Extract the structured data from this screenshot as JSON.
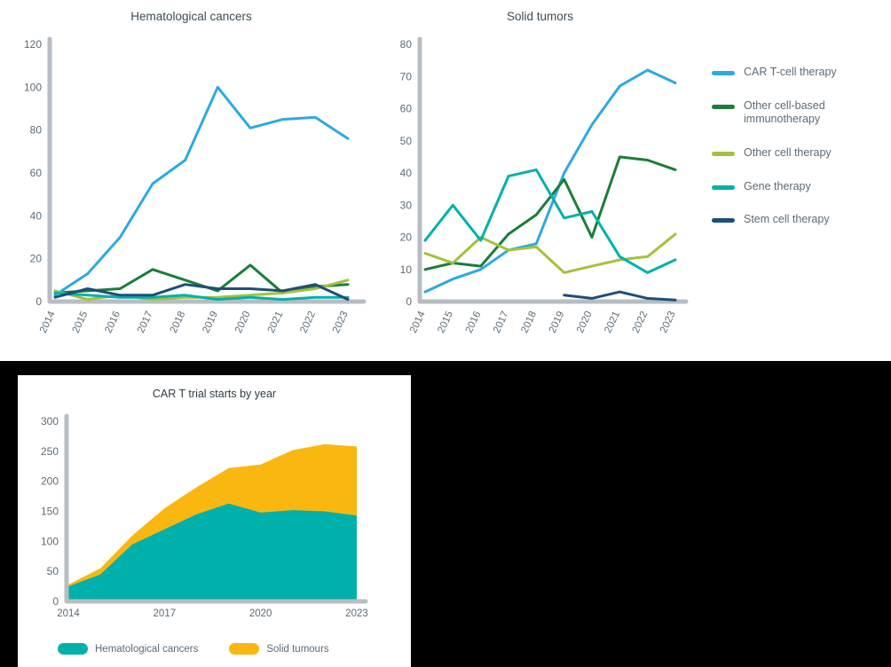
{
  "colors": {
    "car_t": "#2da9e1",
    "other_immuno": "#1b7d39",
    "other_cell": "#a4c13d",
    "gene": "#00b1ab",
    "stem": "#1e4e79",
    "hema_area": "#00b1ab",
    "solid_area": "#fab70f",
    "axis": "#b7bdc2",
    "tick_text": "#5d6b76",
    "title_text": "#3c4b55"
  },
  "chart_data": [
    {
      "id": "hematological",
      "type": "line",
      "title": "Hematological cancers",
      "categories": [
        "2014",
        "2015",
        "2016",
        "2017",
        "2018",
        "2019",
        "2020",
        "2021",
        "2022",
        "2023"
      ],
      "ylim": [
        0,
        120
      ],
      "ytick_step": 20,
      "grid": false,
      "series": [
        {
          "name": "CAR T-cell therapy",
          "color": "car_t",
          "values": [
            3,
            13,
            30,
            55,
            66,
            100,
            81,
            85,
            86,
            76
          ]
        },
        {
          "name": "Other cell-based immunotherapy",
          "color": "other_immuno",
          "values": [
            4,
            5,
            6,
            15,
            10,
            5,
            17,
            4,
            7,
            8
          ]
        },
        {
          "name": "Other cell therapy",
          "color": "other_cell",
          "values": [
            5,
            1,
            3,
            1,
            2,
            2,
            3,
            4,
            6,
            10
          ]
        },
        {
          "name": "Gene therapy",
          "color": "gene",
          "values": [
            4,
            3,
            2,
            2,
            3,
            1,
            2,
            1,
            2,
            2
          ]
        },
        {
          "name": "Stem cell therapy",
          "color": "stem",
          "values": [
            2,
            6,
            3,
            3,
            8,
            6,
            6,
            5,
            8,
            1
          ]
        }
      ]
    },
    {
      "id": "solid",
      "type": "line",
      "title": "Solid tumors",
      "categories": [
        "2014",
        "2015",
        "2016",
        "2017",
        "2018",
        "2019",
        "2020",
        "2021",
        "2022",
        "2023"
      ],
      "ylim": [
        0,
        80
      ],
      "ytick_step": 10,
      "grid": false,
      "series": [
        {
          "name": "CAR T-cell therapy",
          "color": "car_t",
          "values": [
            3,
            7,
            10,
            16,
            18,
            40,
            55,
            67,
            72,
            68
          ]
        },
        {
          "name": "Other cell-based immunotherapy",
          "color": "other_immuno",
          "values": [
            10,
            12,
            11,
            21,
            27,
            38,
            20,
            45,
            44,
            41
          ]
        },
        {
          "name": "Other cell therapy",
          "color": "other_cell",
          "values": [
            15,
            12,
            20,
            16,
            17,
            9,
            11,
            13,
            14,
            21
          ]
        },
        {
          "name": "Gene therapy",
          "color": "gene",
          "values": [
            19,
            30,
            19,
            39,
            41,
            26,
            28,
            14,
            9,
            13
          ]
        },
        {
          "name": "Stem cell therapy",
          "color": "stem",
          "values": [
            null,
            null,
            null,
            null,
            null,
            2,
            1,
            3,
            1,
            0.5
          ]
        }
      ]
    },
    {
      "id": "car_t_starts",
      "type": "area",
      "title": "CAR T trial starts by year",
      "categories": [
        "2014",
        "2015",
        "2016",
        "2017",
        "2018",
        "2019",
        "2020",
        "2021",
        "2022",
        "2023"
      ],
      "ylim": [
        0,
        300
      ],
      "ytick_step": 50,
      "xticks_shown": [
        "2014",
        "2017",
        "2020",
        "2023"
      ],
      "grid": false,
      "series": [
        {
          "name": "Hematological cancers",
          "color": "hema_area",
          "values": [
            25,
            45,
            95,
            120,
            145,
            163,
            148,
            152,
            150,
            143
          ]
        },
        {
          "name": "Solid tumours",
          "color": "solid_area",
          "values": [
            3,
            10,
            15,
            35,
            45,
            59,
            80,
            100,
            112,
            115
          ]
        }
      ]
    }
  ],
  "legend": {
    "items": [
      {
        "label": "CAR T-cell therapy",
        "color": "car_t"
      },
      {
        "label": "Other cell-based immunotherapy",
        "color": "other_immuno"
      },
      {
        "label": "Other cell therapy",
        "color": "other_cell"
      },
      {
        "label": "Gene therapy",
        "color": "gene"
      },
      {
        "label": "Stem cell therapy",
        "color": "stem"
      }
    ]
  },
  "bottom_legend": {
    "items": [
      {
        "label": "Hematological cancers",
        "color": "hema_area"
      },
      {
        "label": "Solid tumours",
        "color": "solid_area"
      }
    ]
  }
}
